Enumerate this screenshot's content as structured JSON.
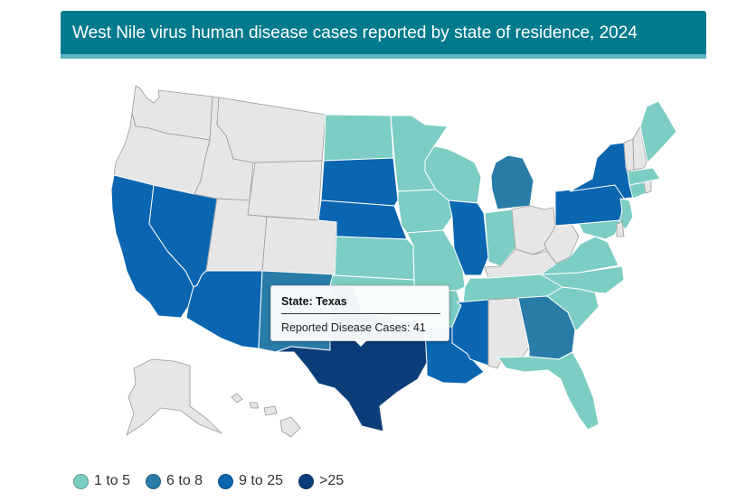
{
  "header": {
    "title": "West Nile virus human disease cases reported by state of residence, 2024"
  },
  "colors": {
    "none": "#e6e6e6",
    "c1_5": "#7ccdc3",
    "c6_8": "#2a7ca8",
    "c9_25": "#0a66b1",
    "cOver25": "#0b3d7a",
    "header": "#007a8c"
  },
  "tooltip": {
    "state_line": "State: Texas",
    "cases_line": "Reported Disease Cases: 41"
  },
  "legend": [
    {
      "label": "1 to 5",
      "color_key": "c1_5"
    },
    {
      "label": "6 to 8",
      "color_key": "c6_8"
    },
    {
      "label": "9 to 25",
      "color_key": "c9_25"
    },
    {
      "label": ">25",
      "color_key": "cOver25"
    }
  ],
  "states": [
    {
      "name": "Washington",
      "bin": "none"
    },
    {
      "name": "Oregon",
      "bin": "none"
    },
    {
      "name": "California",
      "bin": "c9_25"
    },
    {
      "name": "Nevada",
      "bin": "c9_25"
    },
    {
      "name": "Idaho",
      "bin": "none"
    },
    {
      "name": "Montana",
      "bin": "none"
    },
    {
      "name": "Wyoming",
      "bin": "none"
    },
    {
      "name": "Utah",
      "bin": "none"
    },
    {
      "name": "Arizona",
      "bin": "c9_25"
    },
    {
      "name": "Colorado",
      "bin": "none"
    },
    {
      "name": "New Mexico",
      "bin": "c6_8"
    },
    {
      "name": "North Dakota",
      "bin": "c1_5"
    },
    {
      "name": "South Dakota",
      "bin": "c9_25"
    },
    {
      "name": "Nebraska",
      "bin": "c9_25"
    },
    {
      "name": "Kansas",
      "bin": "c1_5"
    },
    {
      "name": "Oklahoma",
      "bin": "c1_5"
    },
    {
      "name": "Texas",
      "bin": "cOver25"
    },
    {
      "name": "Minnesota",
      "bin": "c1_5"
    },
    {
      "name": "Iowa",
      "bin": "c1_5"
    },
    {
      "name": "Missouri",
      "bin": "c1_5"
    },
    {
      "name": "Arkansas",
      "bin": "c1_5"
    },
    {
      "name": "Louisiana",
      "bin": "c9_25"
    },
    {
      "name": "Wisconsin",
      "bin": "c1_5"
    },
    {
      "name": "Illinois",
      "bin": "c9_25"
    },
    {
      "name": "Michigan",
      "bin": "c6_8"
    },
    {
      "name": "Indiana",
      "bin": "c1_5"
    },
    {
      "name": "Ohio",
      "bin": "none"
    },
    {
      "name": "Kentucky",
      "bin": "none"
    },
    {
      "name": "Tennessee",
      "bin": "c1_5"
    },
    {
      "name": "Mississippi",
      "bin": "c9_25"
    },
    {
      "name": "Alabama",
      "bin": "none"
    },
    {
      "name": "Georgia",
      "bin": "c6_8"
    },
    {
      "name": "Florida",
      "bin": "c1_5"
    },
    {
      "name": "South Carolina",
      "bin": "c1_5"
    },
    {
      "name": "North Carolina",
      "bin": "c1_5"
    },
    {
      "name": "Virginia",
      "bin": "c1_5"
    },
    {
      "name": "West Virginia",
      "bin": "none"
    },
    {
      "name": "Pennsylvania",
      "bin": "c9_25"
    },
    {
      "name": "New York",
      "bin": "c9_25"
    },
    {
      "name": "New Jersey",
      "bin": "c1_5"
    },
    {
      "name": "Maryland",
      "bin": "c1_5"
    },
    {
      "name": "Delaware",
      "bin": "none"
    },
    {
      "name": "Connecticut",
      "bin": "c1_5"
    },
    {
      "name": "Rhode Island",
      "bin": "none"
    },
    {
      "name": "Massachusetts",
      "bin": "c1_5"
    },
    {
      "name": "Vermont",
      "bin": "none"
    },
    {
      "name": "New Hampshire",
      "bin": "none"
    },
    {
      "name": "Maine",
      "bin": "c1_5"
    },
    {
      "name": "Alaska",
      "bin": "none"
    },
    {
      "name": "Hawaii",
      "bin": "none"
    }
  ]
}
